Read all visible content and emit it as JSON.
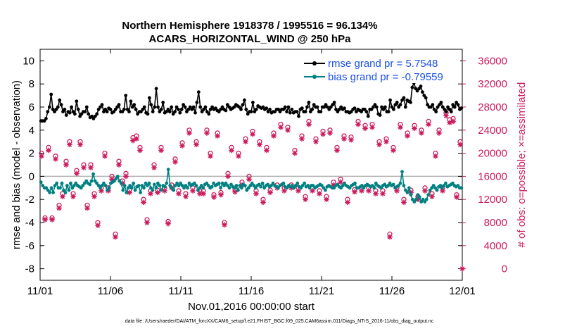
{
  "chart_data": {
    "type": "line",
    "title_line1": "Northern Hemisphere 1918378 / 1995516 = 96.134%",
    "title_line2": "ACARS_HORIZONTAL_WIND @ 250 hPa",
    "xlabel": "Nov.01,2016 00:00:00 start",
    "ylabel_left": "rmse and bias (model - observation)",
    "ylabel_right": "# of obs: o=possible; ×=assimilated",
    "footnote": "data file: /Users/raeder/DAI/ATM_forcXX/CAM6_setup/f.e21.FHIST_BGC.f09_025.CAM6assim.011/Diags_NTrS_2016-11/obs_diag_output.nc",
    "xlim": [
      0,
      30
    ],
    "x_ticks": [
      0,
      5,
      10,
      15,
      20,
      25,
      30
    ],
    "x_tick_labels": [
      "11/01",
      "11/06",
      "11/11",
      "11/16",
      "11/21",
      "11/26",
      "12/01"
    ],
    "ylim_left": [
      -9,
      11
    ],
    "y_ticks_left": [
      -8,
      -6,
      -4,
      -2,
      0,
      2,
      4,
      6,
      8,
      10
    ],
    "ylim_right": [
      -2000,
      38000
    ],
    "y_ticks_right": [
      0,
      4000,
      8000,
      12000,
      16000,
      20000,
      24000,
      28000,
      32000,
      36000
    ],
    "zero_line": 0,
    "colors": {
      "rmse": "#000000",
      "bias": "#008080",
      "obs": "#cc1a5c",
      "zero": "#b3b3b3"
    },
    "series": [
      {
        "name": "rmse",
        "legend": "rmse grand pr = 5.7548",
        "axis": "left",
        "color": "#000000",
        "values": [
          4.8,
          4.8,
          4.8,
          5.0,
          5.6,
          6.0,
          7.1,
          5.8,
          5.6,
          5.8,
          6.0,
          6.6,
          6.2,
          5.6,
          5.8,
          5.3,
          5.6,
          5.5,
          6.0,
          5.6,
          5.4,
          6.5,
          5.8,
          5.2,
          5.4,
          5.6,
          5.6,
          6.0,
          5.4,
          5.1,
          5.2,
          5.0,
          5.2,
          5.4,
          5.8,
          6.0,
          6.2,
          5.6,
          5.8,
          5.6,
          5.9,
          5.8,
          5.5,
          5.6,
          5.8,
          6.0,
          6.2,
          5.6,
          5.6,
          5.8,
          7.0,
          5.8,
          5.6,
          6.5,
          6.0,
          6.2,
          5.8,
          5.4,
          5.6,
          5.6,
          5.8,
          6.0,
          5.5,
          5.4,
          6.8,
          6.2,
          5.6,
          6.0,
          7.6,
          6.0,
          5.6,
          5.8,
          6.4,
          5.5,
          5.6,
          5.8,
          5.6,
          6.0,
          5.4,
          5.6,
          6.0,
          5.8,
          5.5,
          5.8,
          6.2,
          6.0,
          5.6,
          5.8,
          6.0,
          5.8,
          6.0,
          5.5,
          6.4,
          7.3,
          6.0,
          5.6,
          5.8,
          6.0,
          5.6,
          5.4,
          5.8,
          6.0,
          5.8,
          5.9,
          5.7,
          5.6,
          5.8,
          6.0,
          5.8,
          5.7,
          6.2,
          6.0,
          5.8,
          5.9,
          6.0,
          6.2,
          6.1,
          6.0,
          5.8,
          6.2,
          6.6,
          5.8,
          5.4,
          5.6,
          5.6,
          6.4,
          5.6,
          5.8,
          6.1,
          6.0,
          5.9,
          6.0,
          5.8,
          5.9,
          5.6,
          5.8,
          5.5,
          5.6,
          5.6,
          5.8,
          5.8,
          5.6,
          5.8,
          5.8,
          6.0,
          5.6,
          6.0,
          5.5,
          5.8,
          5.5,
          5.6,
          5.6,
          5.2,
          5.8,
          5.9,
          5.6,
          5.6,
          6.0,
          6.4,
          5.6,
          5.8,
          6.2,
          6.0,
          6.0,
          5.6,
          5.6,
          6.0,
          6.0,
          6.2,
          6.0,
          5.8,
          6.0,
          6.2,
          6.4,
          5.8,
          5.6,
          5.8,
          6.0,
          5.8,
          5.9,
          5.6,
          5.6,
          5.5,
          5.6,
          5.8,
          5.9,
          5.6,
          5.8,
          5.7,
          5.6,
          5.8,
          5.8,
          5.6,
          5.2,
          5.8,
          5.8,
          6.0,
          6.2,
          6.0,
          5.4,
          5.3,
          6.0,
          5.8,
          6.0,
          5.6,
          5.6,
          6.6,
          6.0,
          5.8,
          6.2,
          6.4,
          6.0,
          6.2,
          6.6,
          6.8,
          6.0,
          6.6,
          6.5,
          6.4,
          7.7,
          8.1,
          7.6,
          7.4,
          7.6,
          7.8,
          7.3,
          7.0,
          6.8,
          6.2,
          6.0,
          6.0,
          6.2,
          5.8,
          5.6,
          6.0,
          6.2,
          6.4,
          6.0,
          5.8,
          5.6,
          6.0,
          5.8,
          5.6,
          6.2,
          6.0,
          6.4,
          6.2,
          5.8,
          5.9
        ]
      },
      {
        "name": "bias",
        "legend": "bias grand pr = -0.79559",
        "axis": "left",
        "color": "#008080",
        "values": [
          -0.5,
          -0.8,
          -1.0,
          -1.0,
          -1.2,
          -1.4,
          -1.0,
          -1.4,
          -0.8,
          -0.6,
          -1.0,
          -1.0,
          -0.6,
          -1.2,
          -1.4,
          -0.8,
          -1.2,
          -0.6,
          -1.0,
          -0.8,
          -0.6,
          -0.8,
          -0.9,
          -1.0,
          -0.8,
          -0.6,
          -0.4,
          -0.6,
          -0.7,
          -0.4,
          0.2,
          -0.4,
          -0.6,
          -0.8,
          -1.0,
          -0.8,
          -0.6,
          -0.8,
          -1.2,
          -1.0,
          -0.6,
          -0.5,
          -0.4,
          -0.2,
          0.0,
          -0.4,
          -0.6,
          -1.2,
          -0.8,
          -1.4,
          -1.0,
          -0.8,
          -1.0,
          -0.6,
          -1.2,
          -0.9,
          -0.8,
          -1.4,
          -0.8,
          -1.0,
          -0.6,
          -0.8,
          -0.6,
          -1.0,
          -1.2,
          -0.7,
          -1.0,
          -0.6,
          -0.8,
          -1.2,
          -0.8,
          -0.9,
          -0.6,
          0.6,
          -0.8,
          -1.0,
          -1.2,
          -0.8,
          -0.6,
          -0.8,
          -0.6,
          -0.8,
          -1.0,
          -0.8,
          -1.0,
          -0.6,
          -0.8,
          -0.7,
          -0.6,
          -0.8,
          -1.2,
          -1.0,
          -0.8,
          -1.0,
          -0.7,
          -0.6,
          -0.8,
          -1.0,
          -0.9,
          -0.6,
          -0.8,
          -0.7,
          -0.6,
          -1.0,
          -0.6,
          -0.8,
          -0.6,
          -0.8,
          -1.0,
          -0.7,
          -0.9,
          -1.0,
          -0.8,
          -1.2,
          -0.8,
          -1.0,
          -0.7,
          -0.8,
          -1.2,
          -1.0,
          -0.8,
          -0.6,
          -0.8,
          -1.0,
          -0.8,
          -0.7,
          -0.9,
          -0.6,
          -1.0,
          -0.8,
          -0.7,
          -0.9,
          -0.8,
          -0.6,
          -0.8,
          -0.9,
          -1.0,
          -0.8,
          -0.7,
          -0.6,
          -0.9,
          -1.0,
          -0.8,
          -0.9,
          -0.8,
          -1.0,
          -0.8,
          -0.6,
          -0.9,
          -1.0,
          -0.8,
          -0.6,
          -0.9,
          -0.8,
          -1.0,
          -0.8,
          -0.8,
          -1.0,
          -0.9,
          -0.8,
          -0.7,
          -0.8,
          -1.0,
          -1.2,
          -0.9,
          -0.8,
          -0.9,
          -1.0,
          -1.0,
          -0.8,
          -0.7,
          -0.9,
          -1.0,
          -0.8,
          -0.6,
          -0.8,
          -0.9,
          -1.0,
          -0.8,
          -0.7,
          -0.6,
          -1.0,
          -1.0,
          -0.9,
          -0.8,
          -1.0,
          -0.8,
          -0.7,
          -0.8,
          -0.9,
          -0.8,
          -1.0,
          -0.6,
          -0.8,
          -0.9,
          -1.0,
          -0.8,
          -0.7,
          -0.9,
          -0.8,
          -0.6,
          -0.8,
          -0.7,
          -1.0,
          -0.9,
          -0.8,
          -0.6,
          0.4,
          -0.8,
          -1.2,
          -1.4,
          -1.0,
          -1.6,
          -2.0,
          -2.2,
          -2.0,
          -1.6,
          -1.8,
          -2.2,
          -2.0,
          -2.2,
          -2.0,
          -1.6,
          -1.2,
          -1.0,
          -0.8,
          -1.0,
          -1.2,
          -0.9,
          -0.8,
          -1.0,
          -0.8,
          -0.6,
          -0.9,
          -0.8,
          -0.7,
          -0.6,
          -0.8,
          -0.9,
          -0.8,
          -1.0,
          -1.0
        ]
      },
      {
        "name": "obs possible",
        "axis": "right",
        "marker": "o",
        "color": "#cc1a5c",
        "x": [
          0.1,
          0.35,
          0.6,
          0.85,
          1.1,
          1.35,
          1.6,
          1.85,
          2.1,
          2.35,
          2.6,
          2.85,
          3.1,
          3.35,
          3.6,
          3.85,
          4.1,
          4.35,
          4.6,
          4.85,
          5.1,
          5.35,
          5.6,
          5.85,
          6.1,
          6.35,
          6.6,
          6.85,
          7.1,
          7.35,
          7.6,
          7.85,
          8.1,
          8.35,
          8.6,
          8.85,
          9.1,
          9.35,
          9.6,
          9.85,
          10.1,
          10.35,
          10.6,
          10.85,
          11.1,
          11.35,
          11.6,
          11.85,
          12.1,
          12.35,
          12.6,
          12.85,
          13.1,
          13.35,
          13.6,
          13.85,
          14.1,
          14.35,
          14.6,
          14.85,
          15.1,
          15.35,
          15.6,
          15.85,
          16.1,
          16.35,
          16.6,
          16.85,
          17.1,
          17.35,
          17.6,
          17.85,
          18.1,
          18.35,
          18.6,
          18.85,
          19.1,
          19.35,
          19.6,
          19.85,
          20.1,
          20.35,
          20.6,
          20.85,
          21.1,
          21.35,
          21.6,
          21.85,
          22.1,
          22.35,
          22.6,
          22.85,
          23.1,
          23.35,
          23.6,
          23.85,
          24.1,
          24.35,
          24.6,
          24.85,
          25.1,
          25.35,
          25.6,
          25.85,
          26.1,
          26.35,
          26.6,
          26.85,
          27.1,
          27.35,
          27.6,
          27.85,
          28.1,
          28.35,
          28.6,
          28.85,
          29.1,
          29.35,
          29.6,
          29.85
        ],
        "values": [
          20000,
          8800,
          21000,
          8800,
          19500,
          11000,
          13000,
          18600,
          22000,
          13000,
          17000,
          22000,
          18000,
          11000,
          18000,
          13000,
          8000,
          14000,
          20000,
          14000,
          16000,
          6000,
          18600,
          15200,
          16500,
          13600,
          22700,
          23000,
          21000,
          12000,
          8500,
          13500,
          18000,
          13600,
          21000,
          14000,
          8200,
          14500,
          19000,
          13500,
          21800,
          13000,
          24000,
          14000,
          22000,
          13500,
          13500,
          24000,
          20000,
          12800,
          23500,
          13200,
          8000,
          16500,
          21000,
          13700,
          20000,
          15000,
          22500,
          16000,
          23800,
          13500,
          22000,
          12000,
          21000,
          13600,
          23500,
          14500,
          25000,
          14000,
          24500,
          14500,
          20500,
          14000,
          23000,
          12500,
          25500,
          14000,
          22500,
          13500,
          23800,
          12500,
          24000,
          15000,
          21000,
          15500,
          23000,
          12000,
          22800,
          13700,
          25500,
          14000,
          24800,
          14000,
          25000,
          13500,
          22000,
          13500,
          22500,
          6000,
          21000,
          14000,
          25000,
          12000,
          23500,
          13600,
          24800,
          12500,
          24000,
          14000,
          25500,
          13000,
          20000,
          24000,
          14000,
          27000,
          25800,
          26000,
          12800,
          22000
        ]
      },
      {
        "name": "obs assimilated",
        "axis": "right",
        "marker": "*",
        "color": "#cc1a5c",
        "x": [
          0.1,
          0.35,
          0.6,
          0.85,
          1.1,
          1.35,
          1.6,
          1.85,
          2.1,
          2.35,
          2.6,
          2.85,
          3.1,
          3.35,
          3.6,
          3.85,
          4.1,
          4.35,
          4.6,
          4.85,
          5.1,
          5.35,
          5.6,
          5.85,
          6.1,
          6.35,
          6.6,
          6.85,
          7.1,
          7.35,
          7.6,
          7.85,
          8.1,
          8.35,
          8.6,
          8.85,
          9.1,
          9.35,
          9.6,
          9.85,
          10.1,
          10.35,
          10.6,
          10.85,
          11.1,
          11.35,
          11.6,
          11.85,
          12.1,
          12.35,
          12.6,
          12.85,
          13.1,
          13.35,
          13.6,
          13.85,
          14.1,
          14.35,
          14.6,
          14.85,
          15.1,
          15.35,
          15.6,
          15.85,
          16.1,
          16.35,
          16.6,
          16.85,
          17.1,
          17.35,
          17.6,
          17.85,
          18.1,
          18.35,
          18.6,
          18.85,
          19.1,
          19.35,
          19.6,
          19.85,
          20.1,
          20.35,
          20.6,
          20.85,
          21.1,
          21.35,
          21.6,
          21.85,
          22.1,
          22.35,
          22.6,
          22.85,
          23.1,
          23.35,
          23.6,
          23.85,
          24.1,
          24.35,
          24.6,
          24.85,
          25.1,
          25.35,
          25.6,
          25.85,
          26.1,
          26.35,
          26.6,
          26.85,
          27.1,
          27.35,
          27.6,
          27.85,
          28.1,
          28.35,
          28.6,
          28.85,
          29.1,
          29.35,
          29.6,
          29.85
        ],
        "values": [
          19500,
          8500,
          20500,
          8500,
          19000,
          10500,
          12500,
          18000,
          21500,
          12500,
          16500,
          21500,
          17500,
          10500,
          17500,
          12500,
          7500,
          13500,
          19500,
          13500,
          15500,
          5500,
          18000,
          14800,
          16000,
          13200,
          22200,
          22500,
          20500,
          11500,
          8000,
          13000,
          17500,
          13200,
          20500,
          13500,
          7800,
          14000,
          18500,
          13000,
          21300,
          12500,
          23500,
          13500,
          21500,
          13000,
          13000,
          23500,
          19500,
          12400,
          23000,
          12800,
          7600,
          16000,
          20500,
          13300,
          19500,
          14500,
          22000,
          15500,
          23300,
          13000,
          21500,
          11500,
          20500,
          13200,
          23000,
          14000,
          24500,
          13500,
          24000,
          14000,
          20000,
          13500,
          22500,
          12000,
          25000,
          13500,
          22000,
          13000,
          23300,
          12000,
          23500,
          14500,
          20500,
          15000,
          22500,
          11500,
          22300,
          13300,
          25000,
          13500,
          24300,
          13500,
          24500,
          13000,
          21500,
          13000,
          22000,
          5500,
          20500,
          13500,
          24500,
          11500,
          23000,
          13200,
          24300,
          12000,
          23500,
          13500,
          25000,
          12500,
          19500,
          23500,
          13500,
          26500,
          25300,
          25500,
          12400,
          21500
        ]
      }
    ],
    "right_axis_extra_point": {
      "x": 30,
      "value": 0,
      "marker": "*"
    }
  }
}
